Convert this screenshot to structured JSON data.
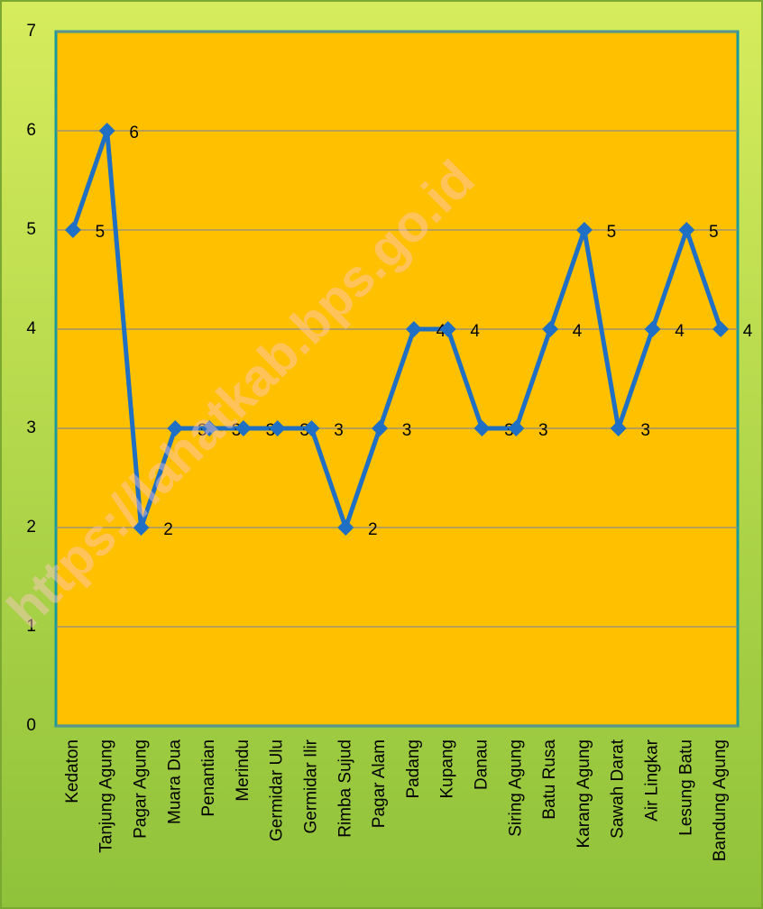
{
  "chart_data": {
    "type": "line",
    "categories": [
      "Kedaton",
      "Tanjung Agung",
      "Pagar Agung",
      "Muara Dua",
      "Penantian",
      "Merindu",
      "Germidar Ulu",
      "Germidar Ilir",
      "Rimba Sujud",
      "Pagar Alam",
      "Padang",
      "Kupang",
      "Danau",
      "Siring Agung",
      "Batu Rusa",
      "Karang Agung",
      "Sawah Darat",
      "Air Lingkar",
      "Lesung Batu",
      "Bandung Agung"
    ],
    "series": [
      {
        "color": "#1f6fc4",
        "values": [
          5,
          6,
          2,
          3,
          3,
          3,
          3,
          3,
          2,
          3,
          4,
          4,
          3,
          3,
          4,
          5,
          3,
          4,
          5,
          4
        ]
      }
    ],
    "ylim": [
      0,
      7
    ],
    "yticks": [
      0,
      1,
      2,
      3,
      4,
      5,
      6,
      7
    ],
    "grid": true,
    "watermark": "https://lahatkab.bps.go.id"
  }
}
